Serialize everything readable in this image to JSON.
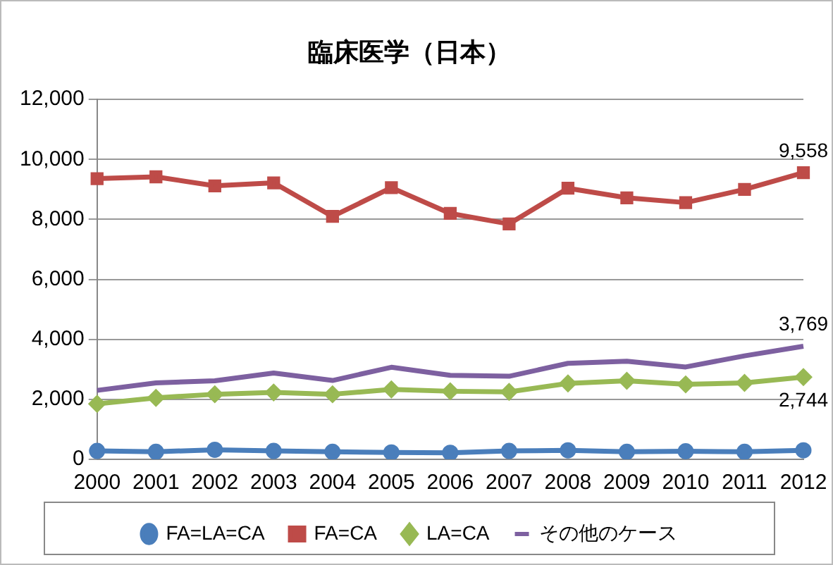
{
  "chart_data": {
    "type": "line",
    "title": "臨床医学（日本）",
    "categories": [
      "2000",
      "2001",
      "2002",
      "2003",
      "2004",
      "2005",
      "2006",
      "2007",
      "2008",
      "2009",
      "2010",
      "2011",
      "2012"
    ],
    "series": [
      {
        "name": "FA=LA=CA",
        "color": "#4a7ebb",
        "marker": "circle",
        "values": [
          280,
          250,
          320,
          280,
          250,
          230,
          220,
          280,
          300,
          250,
          270,
          250,
          300
        ]
      },
      {
        "name": "FA=CA",
        "color": "#be4b48",
        "marker": "square",
        "values": [
          9360,
          9420,
          9120,
          9220,
          8100,
          9060,
          8200,
          7850,
          9040,
          8720,
          8560,
          9000,
          9558
        ],
        "value_labels": [
          null,
          null,
          null,
          null,
          null,
          null,
          null,
          null,
          null,
          null,
          null,
          null,
          "9,558"
        ]
      },
      {
        "name": "LA=CA",
        "color": "#98b954",
        "marker": "diamond",
        "values": [
          1850,
          2050,
          2170,
          2230,
          2170,
          2330,
          2270,
          2250,
          2530,
          2620,
          2500,
          2550,
          2744
        ],
        "value_labels": [
          null,
          null,
          null,
          null,
          null,
          null,
          null,
          null,
          null,
          null,
          null,
          null,
          "2,744"
        ]
      },
      {
        "name": "その他のケース",
        "color": "#7d60a0",
        "marker": "none",
        "values": [
          2300,
          2550,
          2620,
          2880,
          2630,
          3070,
          2800,
          2770,
          3200,
          3270,
          3080,
          3450,
          3769
        ],
        "value_labels": [
          null,
          null,
          null,
          null,
          null,
          null,
          null,
          null,
          null,
          null,
          null,
          null,
          "3,769"
        ]
      }
    ],
    "ylim": [
      0,
      12000
    ],
    "yticks": [
      0,
      {
        "value": 2000,
        "label": "2,000"
      },
      {
        "value": 4000,
        "label": "4,000"
      },
      {
        "value": 6000,
        "label": "6,000"
      },
      {
        "value": 8000,
        "label": "8,000"
      },
      {
        "value": 10000,
        "label": "10,000"
      },
      {
        "value": 12000,
        "label": "12,000"
      }
    ],
    "grid": "y",
    "legend": "bottom",
    "line_style": "solid"
  }
}
